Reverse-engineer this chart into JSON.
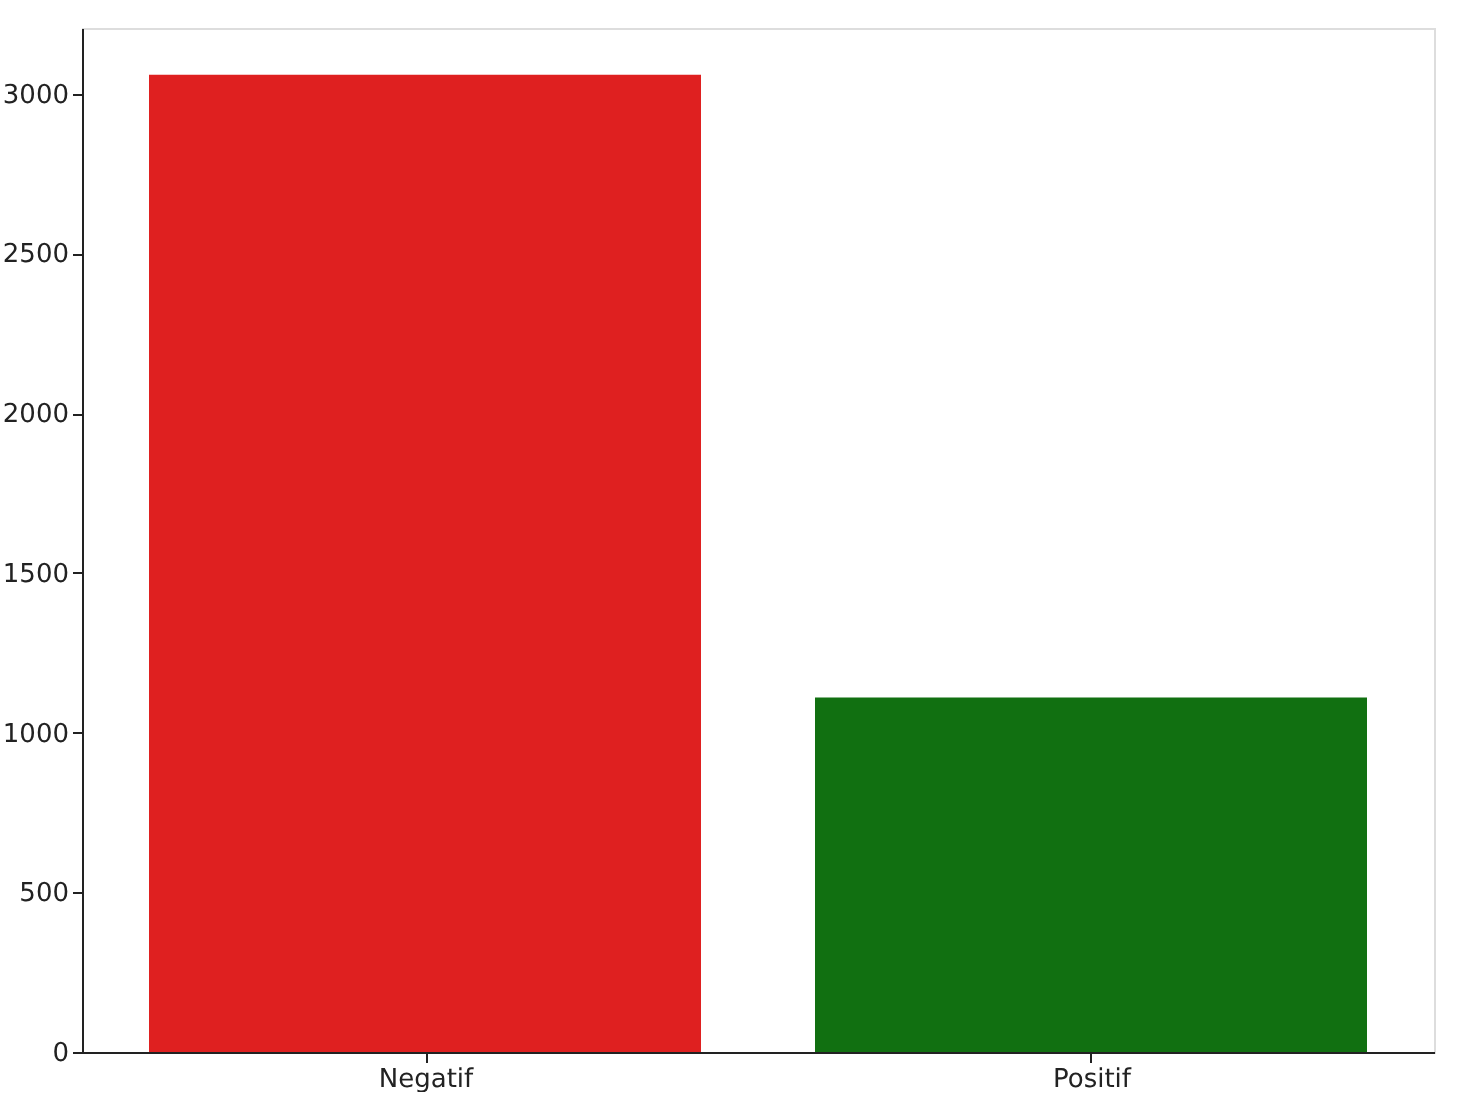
{
  "chart_data": {
    "type": "bar",
    "categories": [
      "Negatif",
      "Positif"
    ],
    "colors": [
      "#df2020",
      "#117011"
    ],
    "values": [
      3060,
      1110
    ],
    "ylim": [
      0,
      3206
    ],
    "yticks": [
      0,
      500,
      1000,
      1500,
      2000,
      2500,
      3000
    ],
    "grid": false,
    "legend": false
  }
}
